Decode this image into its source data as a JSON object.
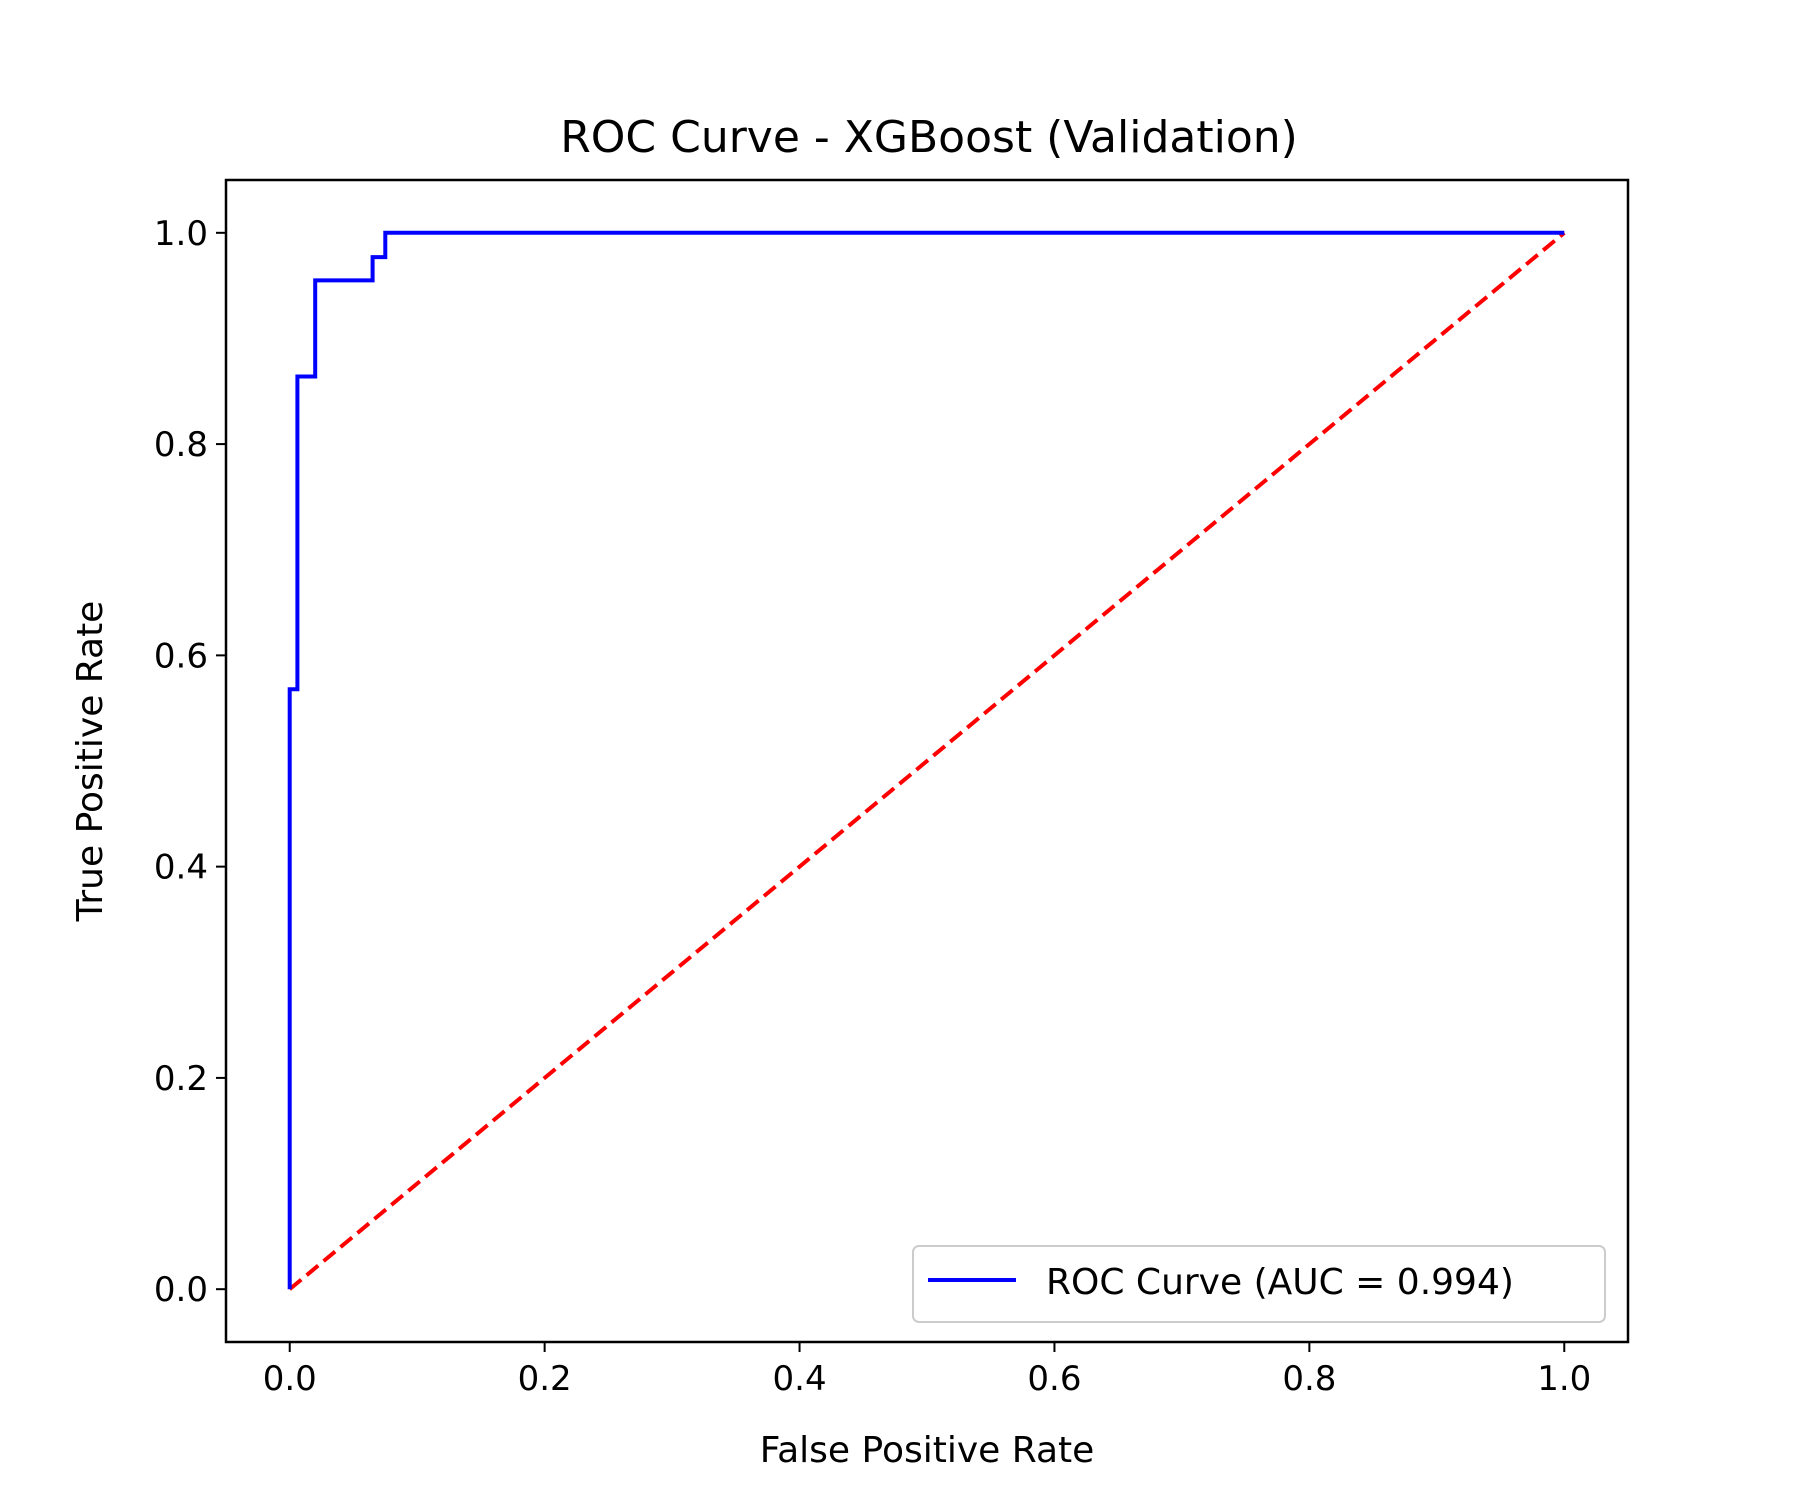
{
  "chart_data": {
    "type": "line",
    "title": "ROC Curve - XGBoost (Validation)",
    "xlabel": "False Positive Rate",
    "ylabel": "True Positive Rate",
    "xlim": [
      -0.05,
      1.05
    ],
    "ylim": [
      -0.05,
      1.05
    ],
    "x_ticks": [
      "0.0",
      "0.2",
      "0.4",
      "0.6",
      "0.8",
      "1.0"
    ],
    "y_ticks": [
      "0.0",
      "0.2",
      "0.4",
      "0.6",
      "0.8",
      "1.0"
    ],
    "grid": false,
    "legend_position": "lower-right",
    "series": [
      {
        "name": "ROC Curve (AUC = 0.994)",
        "color": "#0000ff",
        "style": "solid",
        "x": [
          0.0,
          0.0,
          0.0,
          0.006,
          0.006,
          0.02,
          0.02,
          0.065,
          0.065,
          0.075,
          0.075,
          1.0
        ],
        "y": [
          0.0,
          0.0,
          0.568,
          0.568,
          0.864,
          0.864,
          0.955,
          0.955,
          0.977,
          0.977,
          1.0,
          1.0
        ]
      },
      {
        "color": "#ff0000",
        "style": "dashed",
        "x": [
          0.0,
          1.0
        ],
        "y": [
          0.0,
          1.0
        ]
      }
    ]
  }
}
